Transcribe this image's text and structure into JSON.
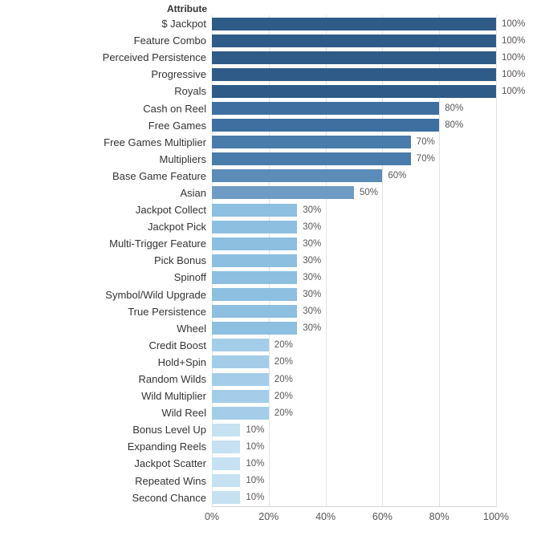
{
  "header": {
    "column_label": "Attribute"
  },
  "colors": {
    "background": "#ffffff",
    "grid": "#e3e3e3",
    "axis_line": "#d6d6d6",
    "category_text": "#333333",
    "value_text": "#575757",
    "tick_text": "#555555"
  },
  "chart_data": {
    "type": "bar",
    "orientation": "horizontal",
    "title": "",
    "ylabel": "Attribute",
    "xlabel": "",
    "xlim": [
      0,
      100
    ],
    "grid": "vertical-only",
    "legend": "none",
    "categories": [
      "$ Jackpot",
      "Feature Combo",
      "Perceived Persistence",
      "Progressive",
      "Royals",
      "Cash on Reel",
      "Free Games",
      "Free Games Multiplier",
      "Multipliers",
      "Base Game Feature",
      "Asian",
      "Jackpot Collect",
      "Jackpot Pick",
      "Multi-Trigger Feature",
      "Pick Bonus",
      "Spinoff",
      "Symbol/Wild Upgrade",
      "True Persistence",
      "Wheel",
      "Credit Boost",
      "Hold+Spin",
      "Random Wilds",
      "Wild Multiplier",
      "Wild Reel",
      "Bonus Level Up",
      "Expanding Reels",
      "Jackpot Scatter",
      "Repeated Wins",
      "Second Chance"
    ],
    "values": [
      100,
      100,
      100,
      100,
      100,
      80,
      80,
      70,
      70,
      60,
      50,
      30,
      30,
      30,
      30,
      30,
      30,
      30,
      30,
      20,
      20,
      20,
      20,
      20,
      10,
      10,
      10,
      10,
      10
    ],
    "value_labels": [
      "100%",
      "100%",
      "100%",
      "100%",
      "100%",
      "80%",
      "80%",
      "70%",
      "70%",
      "60%",
      "50%",
      "30%",
      "30%",
      "30%",
      "30%",
      "30%",
      "30%",
      "30%",
      "30%",
      "20%",
      "20%",
      "20%",
      "20%",
      "20%",
      "10%",
      "10%",
      "10%",
      "10%",
      "10%"
    ],
    "xticks": [
      0,
      20,
      40,
      60,
      80,
      100
    ],
    "xtick_labels": [
      "0%",
      "20%",
      "40%",
      "60%",
      "80%",
      "100%"
    ],
    "bar_colors_by_value": {
      "100": "#2e5b88",
      "80": "#3e6fa0",
      "70": "#4a7cab",
      "60": "#5b8cb8",
      "50": "#6f9cc4",
      "30": "#8dbfe0",
      "20": "#a4cde9",
      "10": "#c5e1f2"
    }
  }
}
